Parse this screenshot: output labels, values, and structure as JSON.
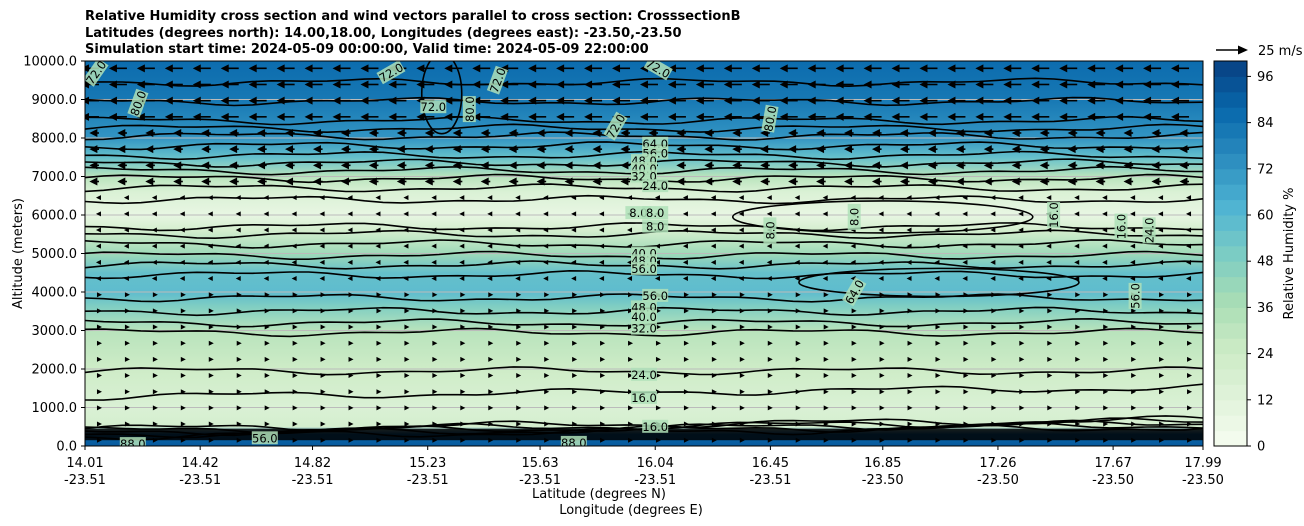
{
  "chart_data": {
    "type": "contour",
    "title_lines": [
      "Relative Humidity cross section and wind vectors parallel to cross section: CrosssectionB",
      "Latitudes (degrees north): 14.00,18.00, Longitudes (degrees east): -23.50,-23.50",
      "Simulation start time: 2024-05-09 00:00:00, Valid time: 2024-05-09 22:00:00"
    ],
    "ylabel": "Altitude (meters)",
    "xlabel_lat": "Latitude (degrees N)",
    "xlabel_lon": "Longitude (degrees E)",
    "ylim": [
      0,
      10000
    ],
    "y_ticks": [
      "0.0",
      "1000.0",
      "2000.0",
      "3000.0",
      "4000.0",
      "5000.0",
      "6000.0",
      "7000.0",
      "8000.0",
      "9000.0",
      "10000.0"
    ],
    "x_ticks": [
      {
        "lat": "14.01",
        "lon": "-23.51"
      },
      {
        "lat": "14.42",
        "lon": "-23.51"
      },
      {
        "lat": "14.82",
        "lon": "-23.51"
      },
      {
        "lat": "15.23",
        "lon": "-23.51"
      },
      {
        "lat": "15.63",
        "lon": "-23.51"
      },
      {
        "lat": "16.04",
        "lon": "-23.51"
      },
      {
        "lat": "16.45",
        "lon": "-23.51"
      },
      {
        "lat": "16.85",
        "lon": "-23.50"
      },
      {
        "lat": "17.26",
        "lon": "-23.50"
      },
      {
        "lat": "17.67",
        "lon": "-23.50"
      },
      {
        "lat": "17.99",
        "lon": "-23.50"
      }
    ],
    "colorbar": {
      "label": "Relative Humidity %",
      "range": [
        0,
        100
      ],
      "levels_step": 4,
      "tick_labels": [
        "0",
        "12",
        "24",
        "36",
        "48",
        "60",
        "72",
        "84",
        "96"
      ]
    },
    "quiver_key": {
      "label": "25 m/s"
    },
    "humidity_profile": [
      {
        "alt": 0,
        "rh": 92
      },
      {
        "alt": 300,
        "rh": 88
      },
      {
        "alt": 500,
        "rh": 20
      },
      {
        "alt": 1000,
        "rh": 16
      },
      {
        "alt": 2000,
        "rh": 24
      },
      {
        "alt": 3000,
        "rh": 32
      },
      {
        "alt": 3600,
        "rh": 48
      },
      {
        "alt": 4000,
        "rh": 58
      },
      {
        "alt": 4500,
        "rh": 56
      },
      {
        "alt": 5000,
        "rh": 40
      },
      {
        "alt": 5600,
        "rh": 20
      },
      {
        "alt": 6000,
        "rh": 8
      },
      {
        "alt": 6600,
        "rh": 16
      },
      {
        "alt": 7000,
        "rh": 32
      },
      {
        "alt": 7500,
        "rh": 56
      },
      {
        "alt": 8000,
        "rh": 72
      },
      {
        "alt": 9000,
        "rh": 82
      },
      {
        "alt": 10000,
        "rh": 86
      }
    ],
    "contour_labels": [
      {
        "text": "72.0",
        "x": 14.05,
        "alt": 9700,
        "rot": -55
      },
      {
        "text": "80.0",
        "x": 14.2,
        "alt": 8900,
        "rot": -70
      },
      {
        "text": "72.0",
        "x": 15.1,
        "alt": 9700,
        "rot": -30
      },
      {
        "text": "72.0",
        "x": 15.25,
        "alt": 8800,
        "rot": 0
      },
      {
        "text": "72.0",
        "x": 15.48,
        "alt": 9500,
        "rot": -70
      },
      {
        "text": "80.0",
        "x": 15.38,
        "alt": 8750,
        "rot": -90
      },
      {
        "text": "72.0",
        "x": 15.9,
        "alt": 8300,
        "rot": -60
      },
      {
        "text": "72.0",
        "x": 16.05,
        "alt": 9800,
        "rot": 30
      },
      {
        "text": "80.0",
        "x": 16.45,
        "alt": 8500,
        "rot": -80
      },
      {
        "text": "64.0",
        "x": 16.04,
        "alt": 7850,
        "rot": 0
      },
      {
        "text": "56.0",
        "x": 16.04,
        "alt": 7600,
        "rot": 0
      },
      {
        "text": "48.0",
        "x": 16.0,
        "alt": 7400,
        "rot": 0
      },
      {
        "text": "40.0",
        "x": 16.0,
        "alt": 7200,
        "rot": 0
      },
      {
        "text": "32.0",
        "x": 16.0,
        "alt": 7000,
        "rot": 0
      },
      {
        "text": "24.0",
        "x": 16.04,
        "alt": 6750,
        "rot": 0
      },
      {
        "text": "8.0",
        "x": 15.98,
        "alt": 6050,
        "rot": 0
      },
      {
        "text": "8.0",
        "x": 16.04,
        "alt": 6050,
        "rot": 0
      },
      {
        "text": "8.0",
        "x": 16.04,
        "alt": 5700,
        "rot": 0
      },
      {
        "text": "8.0",
        "x": 16.45,
        "alt": 5600,
        "rot": -90
      },
      {
        "text": "8.0",
        "x": 16.75,
        "alt": 5950,
        "rot": -90
      },
      {
        "text": "16.0",
        "x": 17.46,
        "alt": 6000,
        "rot": -90
      },
      {
        "text": "16.0",
        "x": 17.7,
        "alt": 5700,
        "rot": -90
      },
      {
        "text": "24.0",
        "x": 17.8,
        "alt": 5600,
        "rot": -90
      },
      {
        "text": "40.0",
        "x": 16.0,
        "alt": 5000,
        "rot": 0
      },
      {
        "text": "48.0",
        "x": 16.0,
        "alt": 4800,
        "rot": 0
      },
      {
        "text": "56.0",
        "x": 16.0,
        "alt": 4600,
        "rot": 0
      },
      {
        "text": "64.0",
        "x": 16.75,
        "alt": 4000,
        "rot": -60
      },
      {
        "text": "56.0",
        "x": 16.04,
        "alt": 3900,
        "rot": 0
      },
      {
        "text": "48.0",
        "x": 16.0,
        "alt": 3600,
        "rot": 0
      },
      {
        "text": "40.0",
        "x": 16.0,
        "alt": 3350,
        "rot": 0
      },
      {
        "text": "32.0",
        "x": 16.0,
        "alt": 3050,
        "rot": 0
      },
      {
        "text": "56.0",
        "x": 17.75,
        "alt": 3900,
        "rot": -90
      },
      {
        "text": "24.0",
        "x": 16.0,
        "alt": 1850,
        "rot": 0
      },
      {
        "text": "16.0",
        "x": 16.0,
        "alt": 1250,
        "rot": 0
      },
      {
        "text": "16.0",
        "x": 16.04,
        "alt": 500,
        "rot": 0
      },
      {
        "text": "88.0",
        "x": 14.18,
        "alt": 50,
        "rot": 0
      },
      {
        "text": "56.0",
        "x": 14.65,
        "alt": 200,
        "rot": 0
      },
      {
        "text": "88.0",
        "x": 15.75,
        "alt": 80,
        "rot": 0
      }
    ],
    "wind": [
      {
        "alt_min": 8300,
        "alt_max": 10000,
        "u": -15
      },
      {
        "alt_min": 6500,
        "alt_max": 8300,
        "u": -8
      },
      {
        "alt_min": 4200,
        "alt_max": 6500,
        "u": -2
      },
      {
        "alt_min": 2000,
        "alt_max": 4200,
        "u": 2
      },
      {
        "alt_min": 0,
        "alt_max": 2000,
        "u": 2
      }
    ],
    "colors": {
      "colormap": "GnBu",
      "contour_line": "#000000",
      "grid": "#bbbbbb"
    }
  }
}
